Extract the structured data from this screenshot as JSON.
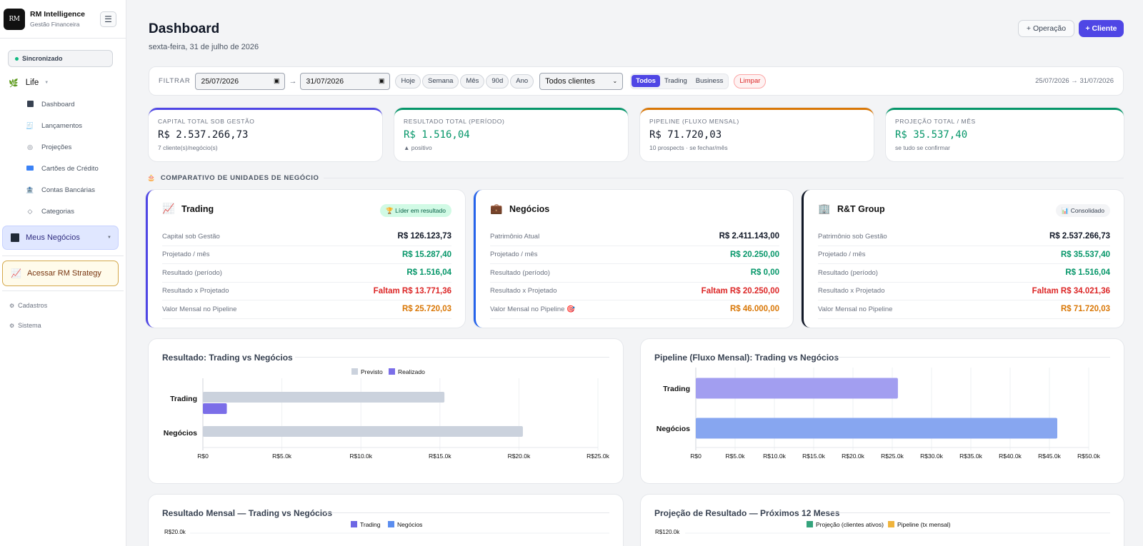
{
  "brand": {
    "logo": "RM",
    "name": "RM Intelligence",
    "sub": "Gestão Financeira"
  },
  "sidebar": {
    "sync": "Sincronizado",
    "life": "Life",
    "items": [
      {
        "label": "Dashboard",
        "icon": "dashboard-icon"
      },
      {
        "label": "Lançamentos",
        "icon": "receipt-icon"
      },
      {
        "label": "Projeções",
        "icon": "target-icon"
      },
      {
        "label": "Cartões de Crédito",
        "icon": "credit-card-icon"
      },
      {
        "label": "Contas Bancárias",
        "icon": "bank-icon"
      },
      {
        "label": "Categorias",
        "icon": "tag-icon"
      }
    ],
    "meus_negocios": "Meus Negócios",
    "acessar": "Acessar RM Strategy",
    "cadastros": "Cadastros",
    "sistema": "Sistema"
  },
  "header": {
    "title": "Dashboard",
    "date": "sexta-feira, 31 de julho de 2026",
    "btn_operacao": "+ Operação",
    "btn_cliente": "+ Cliente"
  },
  "filter": {
    "label": "FILTRAR",
    "from": "25/07/2026",
    "to": "31/07/2026",
    "quick": [
      "Hoje",
      "Semana",
      "Mês",
      "90d",
      "Ano"
    ],
    "client_select": "Todos clientes",
    "segments": [
      "Todos",
      "Trading",
      "Business"
    ],
    "clear": "Limpar",
    "range": "25/07/2026 → 31/07/2026"
  },
  "kpis": [
    {
      "label": "CAPITAL TOTAL SOB GESTÃO",
      "value": "R$ 2.537.266,73",
      "sub": "7 cliente(s)/negócio(s)",
      "color": "#4f46e5",
      "value_color": "#111827"
    },
    {
      "label": "RESULTADO TOTAL (PERÍODO)",
      "value": "R$ 1.516,04",
      "sub": "▲ positivo",
      "color": "#059669",
      "value_color": "#059669"
    },
    {
      "label": "PIPELINE (FLUXO MENSAL)",
      "value": "R$ 71.720,03",
      "sub": "10 prospects · se fechar/mês",
      "color": "#d97706",
      "value_color": "#111827"
    },
    {
      "label": "PROJEÇÃO TOTAL / MÊS",
      "value": "R$ 35.537,40",
      "sub": "se tudo se confirmar",
      "color": "#059669",
      "value_color": "#059669"
    }
  ],
  "section": {
    "title": "COMPARATIVO DE UNIDADES DE NEGÓCIO"
  },
  "units": [
    {
      "name": "Trading",
      "icon": "chart-up-icon",
      "border": "#4f46e5",
      "badge": "🏆 Líder em resultado",
      "badge_bg": "#d1fae5",
      "badge_color": "#065f46",
      "rows": [
        {
          "label": "Capital sob Gestão",
          "value": "R$ 126.123,73",
          "color": "#111827"
        },
        {
          "label": "Projetado / mês",
          "value": "R$ 15.287,40",
          "color": "#059669"
        },
        {
          "label": "Resultado (período)",
          "value": "R$ 1.516,04",
          "color": "#059669"
        },
        {
          "label": "Resultado x Projetado",
          "value": "Faltam R$ 13.771,36",
          "color": "#dc2626"
        },
        {
          "label": "Valor Mensal no Pipeline",
          "value": "R$ 25.720,03",
          "color": "#d97706"
        }
      ]
    },
    {
      "name": "Negócios",
      "icon": "briefcase-icon",
      "border": "#2563eb",
      "badge": "",
      "badge_bg": "",
      "badge_color": "",
      "rows": [
        {
          "label": "Patrimônio Atual",
          "value": "R$ 2.411.143,00",
          "color": "#111827"
        },
        {
          "label": "Projetado / mês",
          "value": "R$ 20.250,00",
          "color": "#059669"
        },
        {
          "label": "Resultado (período)",
          "value": "R$ 0,00",
          "color": "#059669"
        },
        {
          "label": "Resultado x Projetado",
          "value": "Faltam R$ 20.250,00",
          "color": "#dc2626"
        },
        {
          "label": "Valor Mensal no Pipeline 🎯",
          "value": "R$ 46.000,00",
          "color": "#d97706"
        }
      ]
    },
    {
      "name": "R&T Group",
      "icon": "building-icon",
      "border": "#111827",
      "badge": "📊 Consolidado",
      "badge_bg": "#f3f4f6",
      "badge_color": "#374151",
      "rows": [
        {
          "label": "Patrimônio sob Gestão",
          "value": "R$ 2.537.266,73",
          "color": "#111827"
        },
        {
          "label": "Projetado / mês",
          "value": "R$ 35.537,40",
          "color": "#059669"
        },
        {
          "label": "Resultado (período)",
          "value": "R$ 1.516,04",
          "color": "#059669"
        },
        {
          "label": "Resultado x Projetado",
          "value": "Faltam R$ 34.021,36",
          "color": "#dc2626"
        },
        {
          "label": "Valor Mensal no Pipeline",
          "value": "R$ 71.720,03",
          "color": "#d97706"
        }
      ]
    }
  ],
  "chart_data": [
    {
      "type": "bar",
      "orientation": "horizontal",
      "title": "Resultado: Trading vs Negócios",
      "categories": [
        "Trading",
        "Negócios"
      ],
      "series": [
        {
          "name": "Previsto",
          "values": [
            15287.4,
            20250.0
          ],
          "color": "#cbd2dd"
        },
        {
          "name": "Realizado",
          "values": [
            1516.04,
            0
          ],
          "color": "#7b6ee8"
        }
      ],
      "xlim": [
        0,
        25000
      ],
      "ticks": [
        "R$0",
        "R$5.0k",
        "R$10.0k",
        "R$15.0k",
        "R$20.0k",
        "R$25.0k"
      ],
      "legend": "top"
    },
    {
      "type": "bar",
      "orientation": "horizontal",
      "title": "Pipeline (Fluxo Mensal): Trading vs Negócios",
      "categories": [
        "Trading",
        "Negócios"
      ],
      "series": [
        {
          "name": "",
          "values": [
            25720.03,
            46000.0
          ],
          "colors": [
            "#a29ef0",
            "#87a6f0"
          ]
        }
      ],
      "xlim": [
        0,
        50000
      ],
      "ticks": [
        "R$0",
        "R$5.0k",
        "R$10.0k",
        "R$15.0k",
        "R$20.0k",
        "R$25.0k",
        "R$30.0k",
        "R$35.0k",
        "R$40.0k",
        "R$45.0k",
        "R$50.0k"
      ],
      "legend": "none"
    },
    {
      "type": "bar",
      "title": "Resultado Mensal — Trading vs Negócios",
      "series": [
        {
          "name": "Trading",
          "color": "#6d67e4"
        },
        {
          "name": "Negócios",
          "color": "#5b8def"
        }
      ],
      "ylim": [
        0,
        20000
      ],
      "visible_ticks": [
        "R$20.0k"
      ],
      "legend": "top"
    },
    {
      "type": "bar",
      "title": "Projeção de Resultado — Próximos 12 Meses",
      "series": [
        {
          "name": "Projeção (clientes ativos)",
          "color": "#34a37c"
        },
        {
          "name": "Pipeline (tx mensal)",
          "color": "#f0b43c"
        }
      ],
      "ylim": [
        0,
        120000
      ],
      "visible_ticks": [
        "R$120.0k"
      ],
      "legend": "top"
    }
  ]
}
